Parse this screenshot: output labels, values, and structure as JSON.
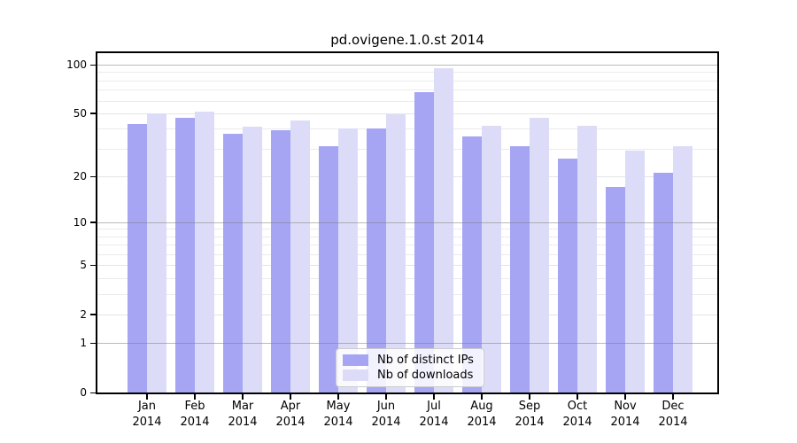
{
  "title": "pd.ovigene.1.0.st 2014",
  "colors": {
    "ips_bar": "#a5a5f3",
    "downloads_bar": "#dcdcf9",
    "decade_grid": "rgba(130,130,130,0.55)",
    "light_major_grid": "#e4e4e8",
    "minor_grid": "#ebebee",
    "spine": "#000000",
    "text": "#000000",
    "legend_border": "#cccccc"
  },
  "y_axis": {
    "tick_labels": [
      "100",
      "50",
      "20",
      "10",
      "5",
      "2",
      "1",
      "0"
    ],
    "tick_values": [
      100,
      50,
      20,
      10,
      5,
      2,
      1,
      0
    ],
    "decade_values": [
      100,
      10,
      1
    ],
    "light_major_values": [
      50,
      20,
      5,
      2
    ],
    "minor_values": [
      90,
      80,
      70,
      60,
      40,
      30,
      9,
      8,
      7,
      6,
      4,
      3
    ]
  },
  "x_axis": {
    "tick_labels": [
      "Jan 2014",
      "Feb 2014",
      "Mar 2014",
      "Apr 2014",
      "May 2014",
      "Jun 2014",
      "Jul 2014",
      "Aug 2014",
      "Sep 2014",
      "Oct 2014",
      "Nov 2014",
      "Dec 2014"
    ]
  },
  "chart_data": {
    "type": "bar",
    "title": "pd.ovigene.1.0.st 2014",
    "categories": [
      "Jan 2014",
      "Feb 2014",
      "Mar 2014",
      "Apr 2014",
      "May 2014",
      "Jun 2014",
      "Jul 2014",
      "Aug 2014",
      "Sep 2014",
      "Oct 2014",
      "Nov 2014",
      "Dec 2014"
    ],
    "series": [
      {
        "name": "Nb of distinct IPs",
        "key": "ips",
        "values": [
          43,
          47,
          37,
          39,
          31,
          40,
          68,
          36,
          31,
          26,
          17,
          21
        ]
      },
      {
        "name": "Nb of downloads",
        "key": "downloads",
        "values": [
          50,
          51,
          41,
          45,
          40,
          49,
          95,
          42,
          47,
          42,
          29,
          31
        ]
      }
    ],
    "xlabel": "",
    "ylabel": "",
    "yscale": "log1p",
    "ylim": [
      0,
      118
    ],
    "yticks": [
      0,
      1,
      2,
      5,
      10,
      20,
      50,
      100
    ],
    "grid": true,
    "legend_position": "lower center"
  }
}
